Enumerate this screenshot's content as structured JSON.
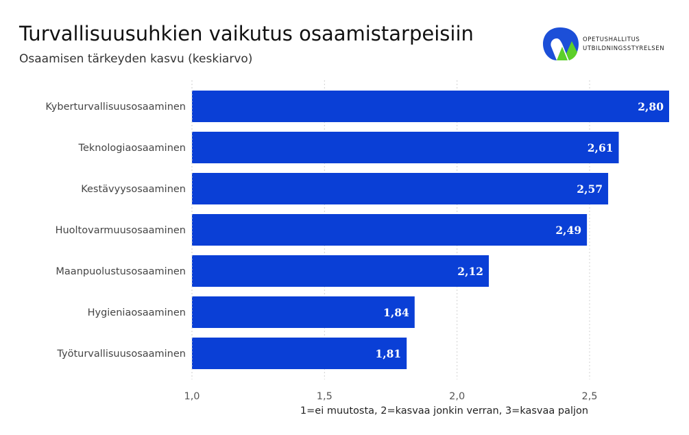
{
  "header": {
    "title": "Turvallisuusuhkien vaikutus osaamistarpeisiin",
    "subtitle": "Osaamisen tärkeyden kasvu (keskiarvo)"
  },
  "logo": {
    "line1": "OPETUSHALLITUS",
    "line2": "UTBILDNINGSSTYRELSEN",
    "colors": {
      "blue": "#1c4fd8",
      "green": "#5ccf2a"
    }
  },
  "chart_data": {
    "type": "bar",
    "orientation": "horizontal",
    "categories": [
      "Kyberturvallisuusosaaminen",
      "Teknologiaosaaminen",
      "Kestävyysosaaminen",
      "Huoltovarmuusosaaminen",
      "Maanpuolustusosaaminen",
      "Hygieniaosaaminen",
      "Työturvallisuusosaaminen"
    ],
    "values": [
      2.8,
      2.61,
      2.57,
      2.49,
      2.12,
      1.84,
      1.81
    ],
    "value_labels": [
      "2,80",
      "2,61",
      "2,57",
      "2,49",
      "2,12",
      "1,84",
      "1,81"
    ],
    "xlabel": "1=ei muutosta, 2=kasvaa jonkin verran, 3=kasvaa paljon",
    "xlim": [
      1.0,
      2.8
    ],
    "xticks": [
      1.0,
      1.5,
      2.0,
      2.5
    ],
    "xtick_labels": [
      "1,0",
      "1,5",
      "2,0",
      "2,5"
    ],
    "grid": "vertical dotted",
    "bar_color": "#0a3fd6",
    "label_color": "#ffffff"
  }
}
